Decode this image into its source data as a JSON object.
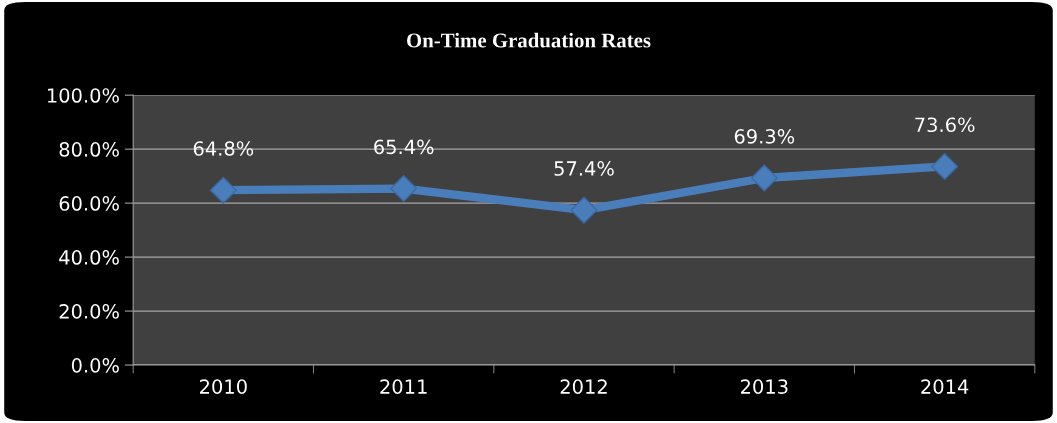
{
  "chart_data": {
    "type": "line",
    "title": "On-Time Graduation Rates",
    "categories": [
      "2010",
      "2011",
      "2012",
      "2013",
      "2014"
    ],
    "series": [
      {
        "color": "#4a7ebb",
        "values": [
          64.8,
          65.4,
          57.4,
          69.3,
          73.6
        ],
        "value_labels": [
          "64.8%",
          "65.4%",
          "57.4%",
          "69.3%",
          "73.6%"
        ]
      }
    ],
    "ylim": [
      0,
      100
    ],
    "yticks": [
      {
        "value": 0,
        "label": "0.0%"
      },
      {
        "value": 20,
        "label": "20.0%"
      },
      {
        "value": 40,
        "label": "40.0%"
      },
      {
        "value": 60,
        "label": "60.0%"
      },
      {
        "value": 80,
        "label": "80.0%"
      },
      {
        "value": 100,
        "label": "100.0%"
      }
    ],
    "grid": "y",
    "marker": "diamond",
    "line_style": "solid"
  }
}
